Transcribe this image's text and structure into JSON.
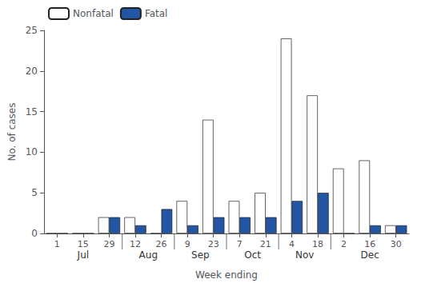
{
  "chart_data": {
    "type": "bar",
    "xlabel": "Week ending",
    "ylabel": "No. of cases",
    "categories": [
      "1",
      "15",
      "29",
      "12",
      "26",
      "9",
      "23",
      "7",
      "21",
      "4",
      "18",
      "2",
      "16",
      "30"
    ],
    "month_labels": [
      {
        "label": "Jul",
        "weeks": [
          "1",
          "15",
          "29"
        ]
      },
      {
        "label": "Aug",
        "weeks": [
          "12",
          "26"
        ]
      },
      {
        "label": "Sep",
        "weeks": [
          "9",
          "23"
        ]
      },
      {
        "label": "Oct",
        "weeks": [
          "7",
          "21"
        ]
      },
      {
        "label": "Nov",
        "weeks": [
          "4",
          "18"
        ]
      },
      {
        "label": "Dec",
        "weeks": [
          "2",
          "16",
          "30"
        ]
      }
    ],
    "series": [
      {
        "name": "Nonfatal",
        "color": "#ffffff",
        "values": [
          0,
          0,
          2,
          2,
          0,
          4,
          14,
          4,
          5,
          24,
          17,
          8,
          9,
          1
        ]
      },
      {
        "name": "Fatal",
        "color": "#2255a4",
        "values": [
          0,
          0,
          2,
          1,
          3,
          1,
          2,
          2,
          2,
          4,
          5,
          0,
          1,
          1
        ]
      }
    ],
    "ylim": [
      0,
      25
    ],
    "yticks": [
      0,
      5,
      10,
      15,
      20,
      25
    ],
    "grid": false,
    "legend": "upper left"
  }
}
